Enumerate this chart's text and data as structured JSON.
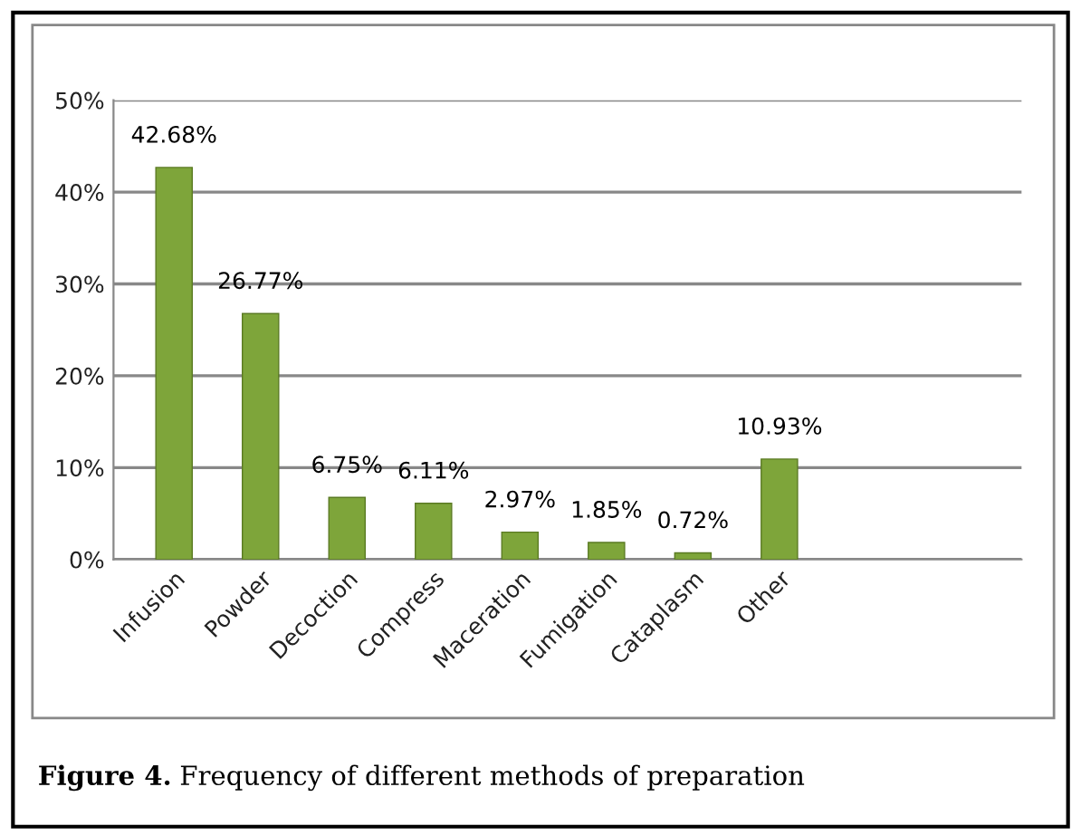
{
  "chart_data": {
    "type": "bar",
    "categories": [
      "Infusion",
      "Powder",
      "Decoction",
      "Compress",
      "Maceration",
      "Fumigation",
      "Cataplasm",
      "Other"
    ],
    "values": [
      42.68,
      26.77,
      6.75,
      6.11,
      2.97,
      1.85,
      0.72,
      10.93
    ],
    "value_labels": [
      "42.68%",
      "26.77%",
      "6.75%",
      "6.11%",
      "2.97%",
      "1.85%",
      "0.72%",
      "10.93%"
    ],
    "color": "#7ea53a",
    "ylim": [
      0,
      50
    ],
    "yticks": [
      {
        "value": 0,
        "label": "0%"
      },
      {
        "value": 10,
        "label": "10%"
      },
      {
        "value": 20,
        "label": "20%"
      },
      {
        "value": 30,
        "label": "30%"
      },
      {
        "value": 40,
        "label": "40%"
      },
      {
        "value": 50,
        "label": "50%"
      }
    ],
    "grid": "y",
    "annotations": [
      "Figure 4.",
      "Frequency of different methods of preparation"
    ]
  }
}
